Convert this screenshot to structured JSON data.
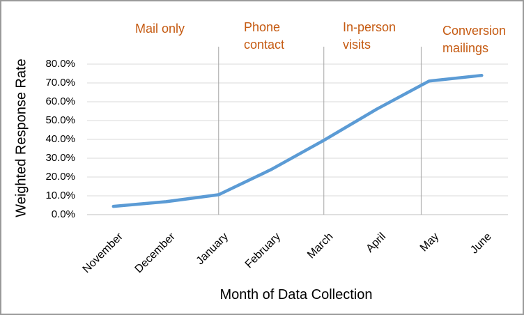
{
  "chart_data": {
    "type": "line",
    "title": "",
    "xlabel": "Month of Data Collection",
    "ylabel": "Weighted Response Rate",
    "categories": [
      "November",
      "December",
      "January",
      "February",
      "March",
      "April",
      "May",
      "June"
    ],
    "values_pct": [
      4.4,
      6.9,
      10.6,
      24.0,
      39.5,
      56.0,
      71.0,
      74.0
    ],
    "ylim": [
      0,
      80
    ],
    "ytick_step": 10,
    "ytick_labels": [
      "0.0%",
      "10.0%",
      "20.0%",
      "30.0%",
      "40.0%",
      "50.0%",
      "60.0%",
      "70.0%",
      "80.0%"
    ],
    "grid": true,
    "legend": "none",
    "line_color": "#5B9BD5",
    "grid_color": "#D9D9D9",
    "axis_line_color": "#BFBFBF",
    "annotations": {
      "divider_color": "#A6A6A6",
      "phase_divider_month_index": [
        2.0,
        4.0,
        5.85
      ],
      "phase_labels": [
        {
          "text": "Mail only",
          "lines": [
            "Mail only"
          ],
          "color": "#C55A11"
        },
        {
          "text": "Phone contact",
          "lines": [
            "Phone",
            "contact"
          ],
          "color": "#C55A11"
        },
        {
          "text": "In-person visits",
          "lines": [
            "In-person",
            "visits"
          ],
          "color": "#C55A11"
        },
        {
          "text": "Conversion mailings",
          "lines": [
            "Conversion",
            "mailings"
          ],
          "color": "#C55A11"
        }
      ]
    }
  }
}
